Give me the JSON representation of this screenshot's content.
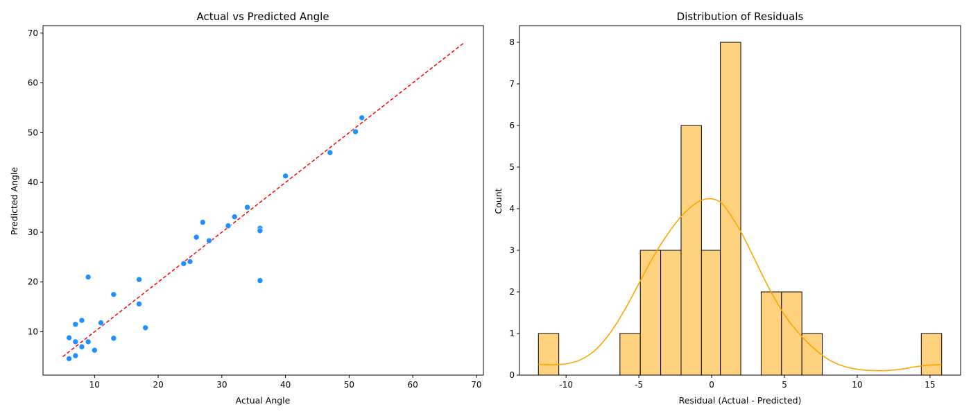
{
  "chart_data": [
    {
      "type": "scatter",
      "title": "Actual vs Predicted Angle",
      "xlabel": "Actual Angle",
      "ylabel": "Predicted Angle",
      "xlim": [
        1.9,
        71.1
      ],
      "ylim": [
        1.3,
        71.5
      ],
      "xticks": [
        10,
        20,
        30,
        40,
        50,
        60,
        70
      ],
      "yticks": [
        10,
        20,
        30,
        40,
        50,
        60,
        70
      ],
      "grid": false,
      "point_color": "#1e90ff",
      "points": [
        {
          "x": 6,
          "y": 4.6
        },
        {
          "x": 6,
          "y": 8.8
        },
        {
          "x": 7,
          "y": 5.2
        },
        {
          "x": 7,
          "y": 8.0
        },
        {
          "x": 7,
          "y": 11.5
        },
        {
          "x": 8,
          "y": 7.0
        },
        {
          "x": 8,
          "y": 12.3
        },
        {
          "x": 9,
          "y": 8.0
        },
        {
          "x": 9,
          "y": 21.0
        },
        {
          "x": 10,
          "y": 6.3
        },
        {
          "x": 11,
          "y": 11.8
        },
        {
          "x": 13,
          "y": 8.7
        },
        {
          "x": 13,
          "y": 17.5
        },
        {
          "x": 17,
          "y": 15.6
        },
        {
          "x": 17,
          "y": 20.5
        },
        {
          "x": 18,
          "y": 10.8
        },
        {
          "x": 24,
          "y": 23.7
        },
        {
          "x": 25,
          "y": 24.1
        },
        {
          "x": 26,
          "y": 29.0
        },
        {
          "x": 27,
          "y": 32.0
        },
        {
          "x": 28,
          "y": 28.3
        },
        {
          "x": 31,
          "y": 31.3
        },
        {
          "x": 32,
          "y": 33.1
        },
        {
          "x": 34,
          "y": 35.0
        },
        {
          "x": 36,
          "y": 30.8
        },
        {
          "x": 36,
          "y": 30.3
        },
        {
          "x": 36,
          "y": 20.3
        },
        {
          "x": 40,
          "y": 41.3
        },
        {
          "x": 47,
          "y": 46.0
        },
        {
          "x": 51,
          "y": 50.2
        },
        {
          "x": 52,
          "y": 53.0
        }
      ],
      "reference_line": {
        "style": "dashed",
        "color": "#ff0000",
        "from": [
          5,
          5
        ],
        "to": [
          68,
          68
        ]
      }
    },
    {
      "type": "bar",
      "subtype": "histogram_with_kde",
      "title": "Distribution of Residuals",
      "xlabel": "Residual (Actual - Predicted)",
      "ylabel": "Count",
      "xlim": [
        -13.2,
        17.1
      ],
      "ylim": [
        0,
        8.4
      ],
      "xticks": [
        -10,
        -5,
        0,
        5,
        10,
        15
      ],
      "yticks": [
        0,
        1,
        2,
        3,
        4,
        5,
        6,
        7,
        8
      ],
      "grid": false,
      "bar_color": "#ffd280",
      "kde_color": "#ffa500",
      "bins": [
        {
          "x0": -11.9,
          "x1": -10.5,
          "count": 1
        },
        {
          "x0": -10.5,
          "x1": -9.1,
          "count": 0
        },
        {
          "x0": -9.1,
          "x1": -7.7,
          "count": 0
        },
        {
          "x0": -7.7,
          "x1": -6.3,
          "count": 0
        },
        {
          "x0": -6.3,
          "x1": -4.9,
          "count": 1
        },
        {
          "x0": -4.9,
          "x1": -3.5,
          "count": 3
        },
        {
          "x0": -3.5,
          "x1": -2.1,
          "count": 3
        },
        {
          "x0": -2.1,
          "x1": -0.7,
          "count": 6
        },
        {
          "x0": -0.7,
          "x1": 0.6,
          "count": 3
        },
        {
          "x0": 0.6,
          "x1": 2.0,
          "count": 8
        },
        {
          "x0": 2.0,
          "x1": 3.4,
          "count": 0
        },
        {
          "x0": 3.4,
          "x1": 4.8,
          "count": 2
        },
        {
          "x0": 4.8,
          "x1": 6.2,
          "count": 2
        },
        {
          "x0": 6.2,
          "x1": 7.6,
          "count": 1
        },
        {
          "x0": 7.6,
          "x1": 9.0,
          "count": 0
        },
        {
          "x0": 9.0,
          "x1": 10.4,
          "count": 0
        },
        {
          "x0": 10.4,
          "x1": 11.8,
          "count": 0
        },
        {
          "x0": 11.8,
          "x1": 13.2,
          "count": 0
        },
        {
          "x0": 13.2,
          "x1": 14.4,
          "count": 0
        },
        {
          "x0": 14.4,
          "x1": 15.8,
          "count": 1
        }
      ],
      "kde": [
        {
          "x": -11.9,
          "y": 0.26
        },
        {
          "x": -11.0,
          "y": 0.25
        },
        {
          "x": -10.0,
          "y": 0.27
        },
        {
          "x": -9.0,
          "y": 0.37
        },
        {
          "x": -8.0,
          "y": 0.6
        },
        {
          "x": -7.0,
          "y": 1.0
        },
        {
          "x": -6.0,
          "y": 1.55
        },
        {
          "x": -5.0,
          "y": 2.2
        },
        {
          "x": -4.0,
          "y": 2.85
        },
        {
          "x": -3.0,
          "y": 3.4
        },
        {
          "x": -2.0,
          "y": 3.85
        },
        {
          "x": -1.0,
          "y": 4.15
        },
        {
          "x": -0.2,
          "y": 4.24
        },
        {
          "x": 0.5,
          "y": 4.18
        },
        {
          "x": 1.0,
          "y": 4.0
        },
        {
          "x": 2.0,
          "y": 3.45
        },
        {
          "x": 3.0,
          "y": 2.75
        },
        {
          "x": 4.0,
          "y": 2.05
        },
        {
          "x": 5.0,
          "y": 1.45
        },
        {
          "x": 6.0,
          "y": 1.0
        },
        {
          "x": 7.0,
          "y": 0.65
        },
        {
          "x": 8.0,
          "y": 0.38
        },
        {
          "x": 9.0,
          "y": 0.22
        },
        {
          "x": 10.0,
          "y": 0.14
        },
        {
          "x": 11.0,
          "y": 0.11
        },
        {
          "x": 12.0,
          "y": 0.11
        },
        {
          "x": 13.0,
          "y": 0.14
        },
        {
          "x": 14.0,
          "y": 0.2
        },
        {
          "x": 15.0,
          "y": 0.24
        },
        {
          "x": 15.8,
          "y": 0.25
        }
      ]
    }
  ]
}
